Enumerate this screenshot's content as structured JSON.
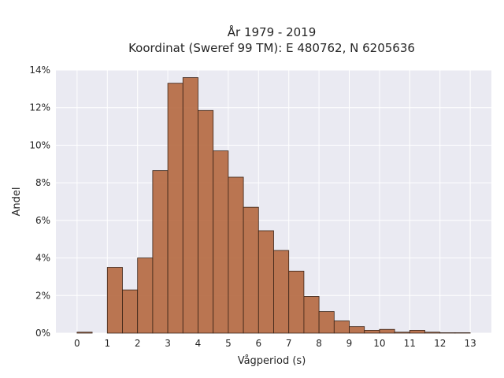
{
  "chart_data": {
    "type": "bar",
    "title_line1": "År 1979 - 2019",
    "title_line2": "Koordinat (Sweref 99 TM): E 480762, N 6205636",
    "xlabel": "Vågperiod (s)",
    "ylabel": "Andel",
    "bin_width": 0.5,
    "xlim": [
      -0.7,
      13.7
    ],
    "ylim": [
      0,
      14
    ],
    "x_ticks": [
      0,
      1,
      2,
      3,
      4,
      5,
      6,
      7,
      8,
      9,
      10,
      11,
      12,
      13
    ],
    "y_ticks": [
      0,
      2,
      4,
      6,
      8,
      10,
      12,
      14
    ],
    "y_tick_labels": [
      "0%",
      "2%",
      "4%",
      "6%",
      "8%",
      "10%",
      "12%",
      "14%"
    ],
    "bins": [
      {
        "x": 0.0,
        "value": 0.05
      },
      {
        "x": 1.0,
        "value": 3.5
      },
      {
        "x": 1.5,
        "value": 2.3
      },
      {
        "x": 2.0,
        "value": 4.0
      },
      {
        "x": 2.5,
        "value": 8.65
      },
      {
        "x": 3.0,
        "value": 13.3
      },
      {
        "x": 3.5,
        "value": 13.6
      },
      {
        "x": 4.0,
        "value": 11.85
      },
      {
        "x": 4.5,
        "value": 9.7
      },
      {
        "x": 5.0,
        "value": 8.3
      },
      {
        "x": 5.5,
        "value": 6.7
      },
      {
        "x": 6.0,
        "value": 5.45
      },
      {
        "x": 6.5,
        "value": 4.4
      },
      {
        "x": 7.0,
        "value": 3.3
      },
      {
        "x": 7.5,
        "value": 1.95
      },
      {
        "x": 8.0,
        "value": 1.15
      },
      {
        "x": 8.5,
        "value": 0.65
      },
      {
        "x": 9.0,
        "value": 0.35
      },
      {
        "x": 9.5,
        "value": 0.15
      },
      {
        "x": 10.0,
        "value": 0.2
      },
      {
        "x": 10.5,
        "value": 0.05
      },
      {
        "x": 11.0,
        "value": 0.15
      },
      {
        "x": 11.5,
        "value": 0.05
      },
      {
        "x": 12.0,
        "value": 0.02
      },
      {
        "x": 12.5,
        "value": 0.02
      }
    ],
    "grid": true,
    "colors": {
      "bar": "#b5683f",
      "bar_edge": "#3a2418",
      "plot_background": "#eaeaf2",
      "grid": "#ffffff"
    }
  }
}
